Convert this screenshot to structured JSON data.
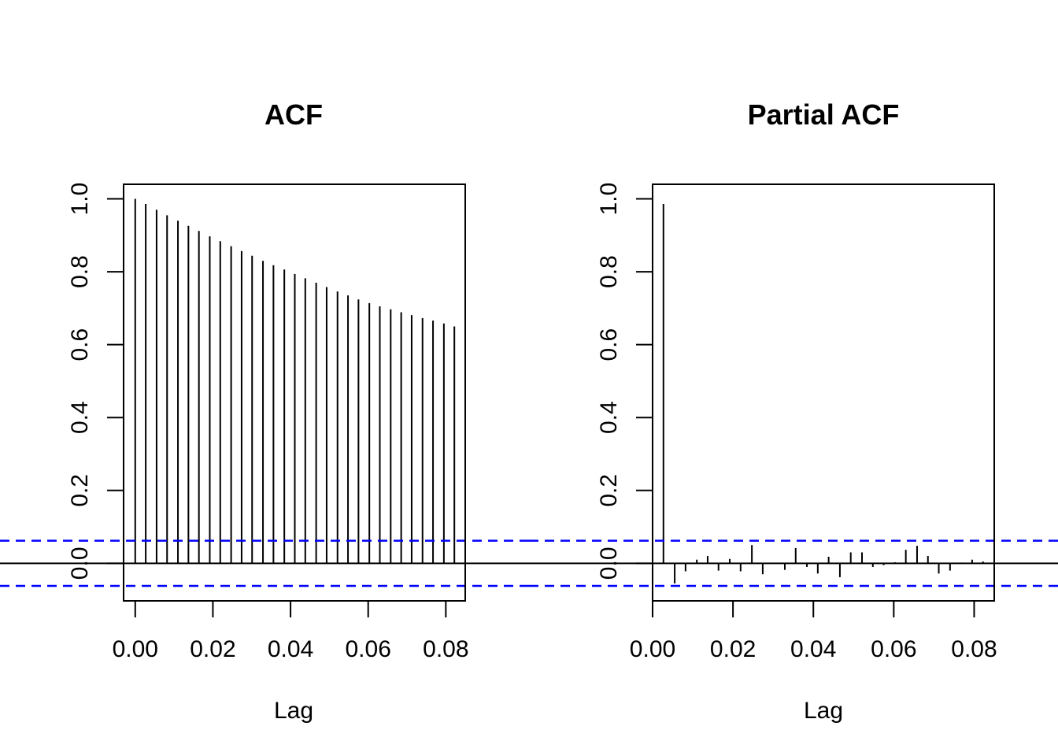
{
  "colors": {
    "stem": "#000000",
    "zero_line": "#000000",
    "ci_line": "#0000ff",
    "background": "#ffffff"
  },
  "chart_data": [
    {
      "type": "bar",
      "subtype": "stem",
      "title": "ACF",
      "xlabel": "Lag",
      "ylabel": "",
      "xlim": [
        -0.003,
        0.085
      ],
      "ylim": [
        -0.103,
        1.04
      ],
      "x_ticks": [
        0.0,
        0.02,
        0.04,
        0.06,
        0.08
      ],
      "x_tick_labels": [
        "0.00",
        "0.02",
        "0.04",
        "0.06",
        "0.08"
      ],
      "y_ticks": [
        0.0,
        0.2,
        0.4,
        0.6,
        0.8,
        1.0
      ],
      "y_tick_labels": [
        "0.0",
        "0.2",
        "0.4",
        "0.6",
        "0.8",
        "1.0"
      ],
      "ci": 0.062,
      "grid": false,
      "x": [
        0.0,
        0.0027,
        0.0055,
        0.0082,
        0.011,
        0.0137,
        0.0164,
        0.0192,
        0.0219,
        0.0247,
        0.0274,
        0.0301,
        0.0329,
        0.0356,
        0.0384,
        0.0411,
        0.0438,
        0.0466,
        0.0493,
        0.0521,
        0.0548,
        0.0575,
        0.0603,
        0.063,
        0.0658,
        0.0685,
        0.0712,
        0.074,
        0.0767,
        0.0795,
        0.0822
      ],
      "values": [
        1.0,
        0.986,
        0.97,
        0.955,
        0.94,
        0.926,
        0.912,
        0.897,
        0.884,
        0.87,
        0.857,
        0.844,
        0.83,
        0.818,
        0.806,
        0.794,
        0.782,
        0.77,
        0.758,
        0.746,
        0.735,
        0.724,
        0.714,
        0.705,
        0.697,
        0.689,
        0.681,
        0.673,
        0.666,
        0.658,
        0.65
      ]
    },
    {
      "type": "bar",
      "subtype": "stem",
      "title": "Partial ACF",
      "xlabel": "Lag",
      "ylabel": "",
      "xlim": [
        0.0,
        0.085
      ],
      "ylim": [
        -0.103,
        1.04
      ],
      "x_ticks": [
        0.0,
        0.02,
        0.04,
        0.06,
        0.08
      ],
      "x_tick_labels": [
        "0.00",
        "0.02",
        "0.04",
        "0.06",
        "0.08"
      ],
      "y_ticks": [
        0.0,
        0.2,
        0.4,
        0.6,
        0.8,
        1.0
      ],
      "y_tick_labels": [
        "0.0",
        "0.2",
        "0.4",
        "0.6",
        "0.8",
        "1.0"
      ],
      "ci": 0.062,
      "grid": false,
      "x": [
        0.0027,
        0.0055,
        0.0082,
        0.011,
        0.0137,
        0.0164,
        0.0192,
        0.0219,
        0.0247,
        0.0274,
        0.0301,
        0.0329,
        0.0356,
        0.0384,
        0.0411,
        0.0438,
        0.0466,
        0.0493,
        0.0521,
        0.0548,
        0.0575,
        0.0603,
        0.063,
        0.0658,
        0.0685,
        0.0712,
        0.074,
        0.0767,
        0.0795,
        0.0822
      ],
      "values": [
        0.986,
        -0.055,
        -0.022,
        0.01,
        0.02,
        -0.02,
        0.012,
        -0.022,
        0.05,
        -0.03,
        0.0,
        -0.018,
        0.042,
        -0.01,
        -0.028,
        0.018,
        -0.038,
        0.03,
        0.03,
        -0.01,
        -0.005,
        0.003,
        0.037,
        0.048,
        0.02,
        -0.028,
        -0.02,
        0.002,
        0.01,
        0.005
      ]
    }
  ]
}
